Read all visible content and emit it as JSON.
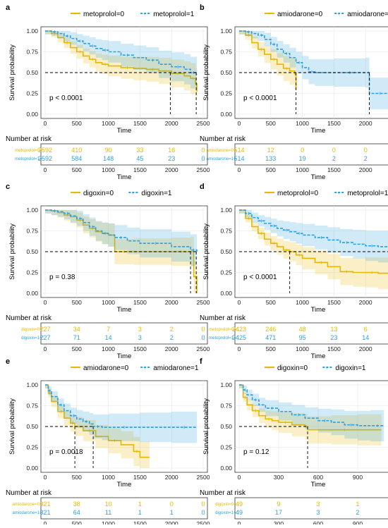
{
  "colors": {
    "group0": "#E7B800",
    "group1": "#2E9FDF",
    "ref": "#000000"
  },
  "chart_data": [
    {
      "id": "a",
      "panel_label": "a",
      "type": "line",
      "legend": [
        "metoprolol=0",
        "metoprolol=1"
      ],
      "xlabel": "Time",
      "ylabel": "Survival probability",
      "xlim": [
        0,
        2500
      ],
      "ylim": [
        0,
        1
      ],
      "xticks": [
        "0",
        "500",
        "1000",
        "1500",
        "2000",
        "2500"
      ],
      "yticks": [
        "0.00",
        "0.25",
        "0.50",
        "0.75",
        "1.00"
      ],
      "pvalue": "p < 0.0001",
      "median_lines": [
        1980,
        2390
      ],
      "series": [
        {
          "name": "metoprolol=0",
          "x": [
            0,
            100,
            200,
            300,
            400,
            500,
            600,
            700,
            800,
            900,
            1000,
            1200,
            1400,
            1600,
            1800,
            2000,
            2200,
            2300,
            2380,
            2400
          ],
          "y": [
            1.0,
            0.97,
            0.92,
            0.86,
            0.8,
            0.75,
            0.7,
            0.66,
            0.62,
            0.6,
            0.58,
            0.56,
            0.55,
            0.54,
            0.52,
            0.49,
            0.46,
            0.43,
            0.37,
            0.27
          ]
        },
        {
          "name": "metoprolol=1",
          "x": [
            0,
            100,
            200,
            300,
            400,
            500,
            600,
            700,
            800,
            900,
            1000,
            1200,
            1400,
            1600,
            1800,
            2000,
            2200,
            2300,
            2400
          ],
          "y": [
            1.0,
            0.99,
            0.97,
            0.94,
            0.91,
            0.88,
            0.85,
            0.82,
            0.79,
            0.77,
            0.75,
            0.71,
            0.68,
            0.65,
            0.6,
            0.57,
            0.54,
            0.5,
            0.48
          ]
        }
      ],
      "risk": {
        "title": "Number at risk",
        "times": [
          "0",
          "500",
          "1000",
          "1500",
          "2000",
          "2500"
        ],
        "rows": [
          {
            "label": "metoprolol=0",
            "values": [
              "2592",
              "410",
              "90",
              "33",
              "16",
              "0"
            ]
          },
          {
            "label": "metoprolol=1",
            "values": [
              "2592",
              "584",
              "148",
              "45",
              "23",
              "0"
            ]
          }
        ],
        "xlabel": "Time"
      }
    },
    {
      "id": "b",
      "panel_label": "b",
      "type": "line",
      "legend": [
        "amiodarone=0",
        "amiodarone=1"
      ],
      "xlabel": "Time",
      "ylabel": "Survival probability",
      "xlim": [
        0,
        2500
      ],
      "ylim": [
        0,
        1
      ],
      "xticks": [
        "0",
        "500",
        "1000",
        "1500",
        "2000",
        "2500"
      ],
      "yticks": [
        "0.00",
        "0.25",
        "0.50",
        "0.75",
        "1.00"
      ],
      "pvalue": "p < 0.0001",
      "median_lines": [
        900,
        2060
      ],
      "series": [
        {
          "name": "amiodarone=0",
          "x": [
            0,
            100,
            200,
            300,
            400,
            500,
            600,
            700,
            800,
            880,
            900
          ],
          "y": [
            1.0,
            0.95,
            0.86,
            0.78,
            0.72,
            0.66,
            0.6,
            0.55,
            0.52,
            0.48,
            0.3
          ]
        },
        {
          "name": "amiodarone=1",
          "x": [
            0,
            100,
            200,
            300,
            400,
            500,
            600,
            700,
            800,
            900,
            1000,
            1100,
            1200,
            1500,
            2000,
            2060,
            2400
          ],
          "y": [
            1.0,
            0.99,
            0.97,
            0.95,
            0.9,
            0.84,
            0.78,
            0.73,
            0.68,
            0.62,
            0.56,
            0.51,
            0.5,
            0.5,
            0.5,
            0.25,
            0.05
          ]
        }
      ],
      "risk": {
        "title": "Number at risk",
        "times": [
          "0",
          "500",
          "1000",
          "1500",
          "2000",
          "2500"
        ],
        "rows": [
          {
            "label": "amiodarone=0",
            "values": [
              "514",
              "12",
              "0",
              "0",
              "0",
              "0"
            ]
          },
          {
            "label": "amiodarone=1",
            "values": [
              "514",
              "133",
              "19",
              "2",
              "2",
              "0"
            ]
          }
        ],
        "xlabel": "Time"
      }
    },
    {
      "id": "c",
      "panel_label": "c",
      "type": "line",
      "legend": [
        "digoxin=0",
        "digoxin=1"
      ],
      "xlabel": "Time",
      "ylabel": "Survival probability",
      "xlim": [
        0,
        2500
      ],
      "ylim": [
        0,
        1
      ],
      "xticks": [
        "0",
        "500",
        "1000",
        "1500",
        "2000",
        "2500"
      ],
      "yticks": [
        "0.00",
        "0.25",
        "0.50",
        "0.75",
        "1.00"
      ],
      "pvalue": "p = 0.38",
      "median_lines": [
        2300,
        2390
      ],
      "series": [
        {
          "name": "digoxin=0",
          "x": [
            0,
            100,
            200,
            300,
            400,
            500,
            600,
            700,
            800,
            900,
            1000,
            1100,
            1400,
            2000,
            2300,
            2350,
            2400
          ],
          "y": [
            1.0,
            0.99,
            0.97,
            0.94,
            0.92,
            0.88,
            0.82,
            0.78,
            0.74,
            0.72,
            0.7,
            0.5,
            0.5,
            0.5,
            0.5,
            0.2,
            0.0
          ]
        },
        {
          "name": "digoxin=1",
          "x": [
            0,
            100,
            200,
            300,
            400,
            500,
            600,
            700,
            800,
            900,
            1000,
            1100,
            1300,
            1500,
            2000,
            2300,
            2400
          ],
          "y": [
            1.0,
            0.99,
            0.98,
            0.96,
            0.93,
            0.9,
            0.85,
            0.8,
            0.75,
            0.72,
            0.7,
            0.67,
            0.63,
            0.6,
            0.56,
            0.52,
            0.5
          ]
        }
      ],
      "risk": {
        "title": "Number at risk",
        "times": [
          "0",
          "500",
          "1000",
          "1500",
          "2000",
          "2500"
        ],
        "rows": [
          {
            "label": "digoxin=0",
            "values": [
              "227",
              "34",
              "7",
              "3",
              "2",
              "0"
            ]
          },
          {
            "label": "digoxin=1",
            "values": [
              "227",
              "71",
              "14",
              "3",
              "2",
              "0"
            ]
          }
        ],
        "xlabel": "Time"
      }
    },
    {
      "id": "d",
      "panel_label": "d",
      "type": "line",
      "legend": [
        "metoprolol=0",
        "metoprolol=1"
      ],
      "xlabel": "Time",
      "ylabel": "Survival probability",
      "xlim": [
        0,
        2500
      ],
      "ylim": [
        0,
        1
      ],
      "xticks": [
        "0",
        "500",
        "1000",
        "1500",
        "2000",
        "2500"
      ],
      "yticks": [
        "0.00",
        "0.25",
        "0.50",
        "0.75",
        "1.00"
      ],
      "pvalue": "p < 0.0001",
      "median_lines": [
        800,
        2400
      ],
      "series": [
        {
          "name": "metoprolol=0",
          "x": [
            0,
            100,
            200,
            300,
            400,
            500,
            600,
            700,
            800,
            900,
            1000,
            1200,
            1400,
            1600,
            1800,
            2000,
            2200,
            2400
          ],
          "y": [
            1.0,
            0.9,
            0.8,
            0.72,
            0.65,
            0.6,
            0.56,
            0.52,
            0.5,
            0.46,
            0.42,
            0.37,
            0.32,
            0.26,
            0.25,
            0.25,
            0.24,
            0.24
          ]
        },
        {
          "name": "metoprolol=1",
          "x": [
            0,
            100,
            200,
            300,
            400,
            500,
            600,
            700,
            800,
            900,
            1000,
            1200,
            1400,
            1600,
            1800,
            2000,
            2200,
            2400
          ],
          "y": [
            1.0,
            0.96,
            0.91,
            0.87,
            0.84,
            0.81,
            0.78,
            0.76,
            0.74,
            0.72,
            0.7,
            0.67,
            0.64,
            0.61,
            0.59,
            0.57,
            0.56,
            0.55
          ]
        }
      ],
      "risk": {
        "title": "Number at risk",
        "times": [
          "0",
          "500",
          "1000",
          "1500",
          "2000",
          "2500"
        ],
        "rows": [
          {
            "label": "metoprolol=0",
            "values": [
              "2423",
              "246",
              "48",
              "13",
              "6",
              "0"
            ]
          },
          {
            "label": "metoprolol=1",
            "values": [
              "2425",
              "471",
              "95",
              "23",
              "14",
              "0"
            ]
          }
        ],
        "xlabel": "Time"
      }
    },
    {
      "id": "e",
      "panel_label": "e",
      "type": "line",
      "legend": [
        "amiodarone=0",
        "amiodarone=1"
      ],
      "xlabel": "Time",
      "ylabel": "Survival probability",
      "xlim": [
        0,
        2500
      ],
      "ylim": [
        0,
        1
      ],
      "xticks": [
        "0",
        "500",
        "1000",
        "1500",
        "2000",
        "2500"
      ],
      "yticks": [
        "0.00",
        "0.25",
        "0.50",
        "0.75",
        "1.00"
      ],
      "pvalue": "p = 0.0018",
      "median_lines": [
        470,
        760
      ],
      "series": [
        {
          "name": "amiodarone=0",
          "x": [
            0,
            50,
            100,
            200,
            300,
            400,
            470,
            600,
            800,
            1000,
            1200,
            1400,
            1500,
            1650
          ],
          "y": [
            1.0,
            0.9,
            0.8,
            0.68,
            0.6,
            0.54,
            0.5,
            0.45,
            0.38,
            0.33,
            0.28,
            0.2,
            0.13,
            0.13
          ]
        },
        {
          "name": "amiodarone=1",
          "x": [
            0,
            50,
            100,
            200,
            300,
            400,
            500,
            600,
            700,
            760,
            900,
            1000,
            1500,
            2000,
            2400
          ],
          "y": [
            1.0,
            0.93,
            0.86,
            0.76,
            0.69,
            0.63,
            0.59,
            0.56,
            0.53,
            0.5,
            0.49,
            0.49,
            0.49,
            0.49,
            0.49
          ]
        }
      ],
      "risk": {
        "title": "Number at risk",
        "times": [
          "0",
          "500",
          "1000",
          "1500",
          "2000",
          "2500"
        ],
        "rows": [
          {
            "label": "amiodarone=0",
            "values": [
              "321",
              "38",
              "10",
              "1",
              "0",
              "0"
            ]
          },
          {
            "label": "amiodarone=1",
            "values": [
              "321",
              "64",
              "11",
              "1",
              "1",
              "0"
            ]
          }
        ],
        "xlabel": "Time"
      }
    },
    {
      "id": "f",
      "panel_label": "f",
      "type": "line",
      "legend": [
        "digoxin=0",
        "digoxin=1"
      ],
      "xlabel": "Time",
      "ylabel": "Survival probability",
      "xlim": [
        0,
        1200
      ],
      "ylim": [
        0,
        1
      ],
      "xticks": [
        "0",
        "300",
        "600",
        "900",
        "1200"
      ],
      "yticks": [
        "0.00",
        "0.25",
        "0.50",
        "0.75",
        "1.00"
      ],
      "pvalue": "p = 0.12",
      "median_lines": [
        520
      ],
      "series": [
        {
          "name": "digoxin=0",
          "x": [
            0,
            30,
            60,
            100,
            150,
            200,
            250,
            300,
            400,
            500,
            520,
            700,
            900,
            1080
          ],
          "y": [
            1.0,
            0.85,
            0.76,
            0.69,
            0.63,
            0.59,
            0.57,
            0.55,
            0.52,
            0.5,
            0.46,
            0.46,
            0.46,
            0.46
          ]
        },
        {
          "name": "digoxin=1",
          "x": [
            0,
            30,
            60,
            100,
            150,
            200,
            300,
            400,
            500,
            600,
            700,
            800,
            900,
            1000,
            1100
          ],
          "y": [
            1.0,
            0.94,
            0.88,
            0.82,
            0.76,
            0.72,
            0.68,
            0.64,
            0.6,
            0.57,
            0.55,
            0.52,
            0.51,
            0.51,
            0.51
          ]
        }
      ],
      "risk": {
        "title": "Number at risk",
        "times": [
          "0",
          "300",
          "600",
          "900",
          "1200"
        ],
        "rows": [
          {
            "label": "digoxin=0",
            "values": [
              "49",
              "9",
              "3",
              "1",
              "0"
            ]
          },
          {
            "label": "digoxin=1",
            "values": [
              "49",
              "17",
              "3",
              "2",
              "0"
            ]
          }
        ],
        "xlabel": "Time"
      }
    }
  ]
}
